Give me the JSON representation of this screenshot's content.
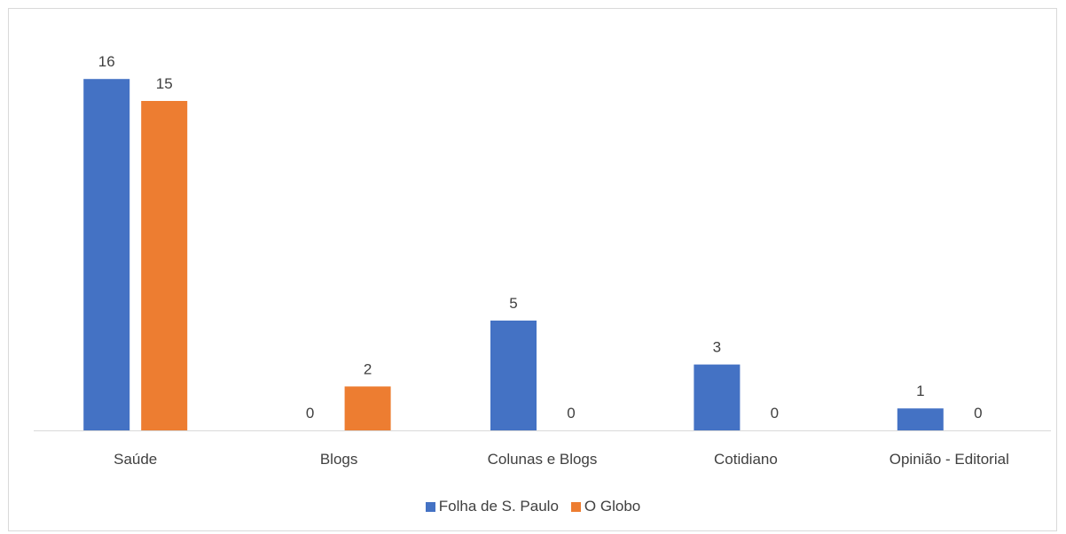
{
  "chart_data": {
    "type": "bar",
    "categories": [
      "Saúde",
      "Blogs",
      "Colunas e Blogs",
      "Cotidiano",
      "Opinião - Editorial"
    ],
    "series": [
      {
        "name": "Folha de S. Paulo",
        "values": [
          16,
          0,
          5,
          3,
          1
        ],
        "color": "#4472C4"
      },
      {
        "name": "O Globo",
        "values": [
          15,
          2,
          0,
          0,
          0
        ],
        "color": "#ED7D31"
      }
    ],
    "ylim": [
      0,
      16
    ],
    "grid": false,
    "data_labels": true,
    "legend_position": "bottom"
  }
}
